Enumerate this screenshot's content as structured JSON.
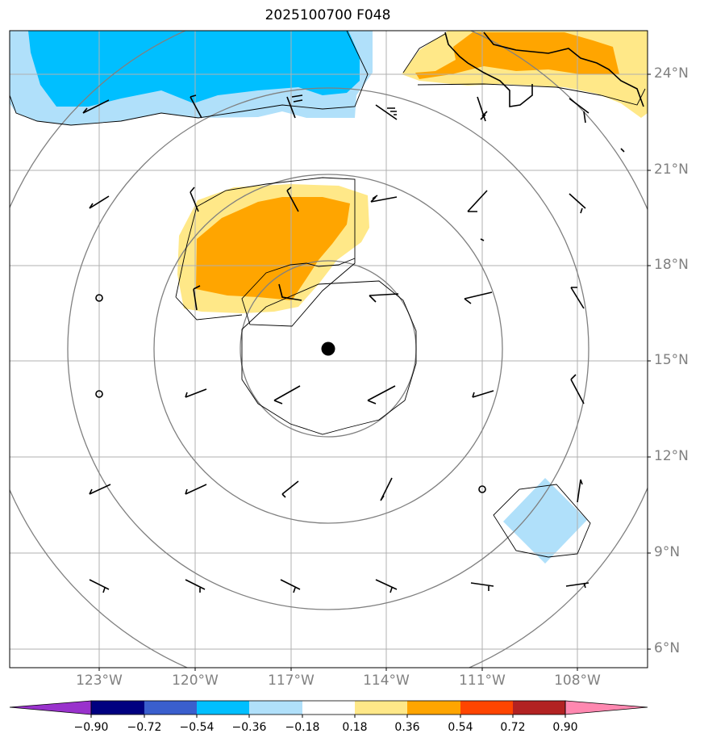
{
  "title": "2025100700 F048",
  "map": {
    "storm_center": {
      "lon": -115.6,
      "lat": 15.4
    },
    "lon_range": [
      -125.0,
      -106.0
    ],
    "lat_range": [
      5.0,
      25.5
    ],
    "lat_labels": [
      "6°N",
      "9°N",
      "12°N",
      "15°N",
      "18°N",
      "21°N",
      "24°N"
    ],
    "lat_values": [
      6,
      9,
      12,
      15,
      18,
      21,
      24
    ],
    "lon_labels": [
      "123°W",
      "120°W",
      "117°W",
      "114°W",
      "111°W",
      "108°W"
    ],
    "lon_values": [
      -123,
      -120,
      -117,
      -114,
      -111,
      -108
    ],
    "range_rings_deg": [
      2.75,
      5.5,
      8.25,
      11.0
    ],
    "shaded_regions": [
      {
        "name": "neg-anomaly-northwest",
        "level": -0.54
      },
      {
        "name": "pos-anomaly-northeast",
        "level": 0.54
      },
      {
        "name": "pos-anomaly-center",
        "level": 0.54
      },
      {
        "name": "neg-anomaly-southeast",
        "level": -0.36
      }
    ],
    "colors": {
      "dark_blue": "#00008b",
      "blue": "#3a5fcd",
      "deep_sky": "#00bfff",
      "light_blue": "#b0e0fa",
      "yellow": "#ffe888",
      "orange": "#ffa500",
      "red_orange": "#ff4500",
      "firebrick": "#b22222",
      "pink": "#ff88b0",
      "purple": "#9932cc",
      "navy": "#000080"
    }
  },
  "colorbar": {
    "ticks": [
      "−0.90",
      "−0.72",
      "−0.54",
      "−0.36",
      "−0.18",
      "0.18",
      "0.36",
      "0.54",
      "0.72",
      "0.90"
    ],
    "levels": [
      -0.9,
      -0.72,
      -0.54,
      -0.36,
      -0.18,
      0.18,
      0.36,
      0.54,
      0.72,
      0.9
    ],
    "bin_colors": [
      "#000080",
      "#3a5fcd",
      "#00bfff",
      "#b0e0fa",
      "#ffffff",
      "#ffe888",
      "#ffa500",
      "#ff4500",
      "#b22222"
    ],
    "under_color": "#9932cc",
    "over_color": "#ff88b0"
  }
}
